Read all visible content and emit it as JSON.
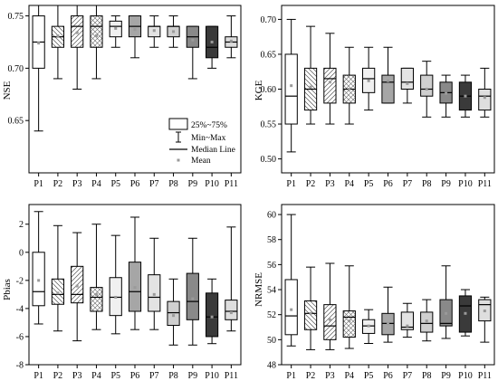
{
  "chart_data": [
    {
      "type": "box",
      "panel": "top-left",
      "ylabel": "NSE",
      "ylim": [
        0.6,
        0.76
      ],
      "yticks": [
        0.65,
        0.7,
        0.75
      ],
      "ytick_labels": [
        "0.65",
        "0.70",
        "0.75"
      ],
      "categories": [
        "P1",
        "P2",
        "P3",
        "P4",
        "P5",
        "P6",
        "P7",
        "P8",
        "P9",
        "P10",
        "P11"
      ],
      "boxes": [
        {
          "min": 0.64,
          "q1": 0.7,
          "median": 0.725,
          "q3": 0.75,
          "max": 0.76,
          "mean": 0.724
        },
        {
          "min": 0.69,
          "q1": 0.72,
          "median": 0.73,
          "q3": 0.74,
          "max": 0.76,
          "mean": 0.731
        },
        {
          "min": 0.68,
          "q1": 0.72,
          "median": 0.74,
          "q3": 0.75,
          "max": 0.76,
          "mean": 0.734
        },
        {
          "min": 0.69,
          "q1": 0.72,
          "median": 0.74,
          "q3": 0.75,
          "max": 0.76,
          "mean": 0.731
        },
        {
          "min": 0.72,
          "q1": 0.73,
          "median": 0.74,
          "q3": 0.745,
          "max": 0.75,
          "mean": 0.738
        },
        {
          "min": 0.71,
          "q1": 0.73,
          "median": 0.74,
          "q3": 0.75,
          "max": 0.75,
          "mean": 0.737
        },
        {
          "min": 0.72,
          "q1": 0.73,
          "median": 0.74,
          "q3": 0.74,
          "max": 0.75,
          "mean": 0.736
        },
        {
          "min": 0.72,
          "q1": 0.73,
          "median": 0.74,
          "q3": 0.74,
          "max": 0.75,
          "mean": 0.735
        },
        {
          "min": 0.69,
          "q1": 0.72,
          "median": 0.73,
          "q3": 0.74,
          "max": 0.74,
          "mean": 0.727
        },
        {
          "min": 0.7,
          "q1": 0.71,
          "median": 0.72,
          "q3": 0.74,
          "max": 0.74,
          "mean": 0.725
        },
        {
          "min": 0.71,
          "q1": 0.72,
          "median": 0.725,
          "q3": 0.73,
          "max": 0.75,
          "mean": 0.726
        }
      ],
      "legend": {
        "placement": "top-right",
        "entries": [
          "25%~75%",
          "Min~Max",
          "Median Line",
          "Mean"
        ]
      }
    },
    {
      "type": "box",
      "panel": "top-right",
      "ylabel": "KGE",
      "ylim": [
        0.48,
        0.72
      ],
      "yticks": [
        0.5,
        0.55,
        0.6,
        0.65,
        0.7
      ],
      "ytick_labels": [
        "0.50",
        "0.55",
        "0.60",
        "0.65",
        "0.70"
      ],
      "categories": [
        "P1",
        "P2",
        "P3",
        "P4",
        "P5",
        "P6",
        "P7",
        "P8",
        "P9",
        "P10",
        "P11"
      ],
      "boxes": [
        {
          "min": 0.51,
          "q1": 0.55,
          "median": 0.59,
          "q3": 0.65,
          "max": 0.7,
          "mean": 0.605
        },
        {
          "min": 0.55,
          "q1": 0.57,
          "median": 0.6,
          "q3": 0.63,
          "max": 0.69,
          "mean": 0.603
        },
        {
          "min": 0.55,
          "q1": 0.58,
          "median": 0.615,
          "q3": 0.63,
          "max": 0.68,
          "mean": 0.61
        },
        {
          "min": 0.55,
          "q1": 0.58,
          "median": 0.6,
          "q3": 0.62,
          "max": 0.66,
          "mean": 0.6
        },
        {
          "min": 0.57,
          "q1": 0.595,
          "median": 0.615,
          "q3": 0.63,
          "max": 0.66,
          "mean": 0.612
        },
        {
          "min": 0.58,
          "q1": 0.58,
          "median": 0.61,
          "q3": 0.62,
          "max": 0.66,
          "mean": 0.612
        },
        {
          "min": 0.58,
          "q1": 0.6,
          "median": 0.61,
          "q3": 0.63,
          "max": 0.63,
          "mean": 0.608
        },
        {
          "min": 0.56,
          "q1": 0.59,
          "median": 0.6,
          "q3": 0.62,
          "max": 0.64,
          "mean": 0.6
        },
        {
          "min": 0.56,
          "q1": 0.58,
          "median": 0.595,
          "q3": 0.61,
          "max": 0.62,
          "mean": 0.594
        },
        {
          "min": 0.56,
          "q1": 0.57,
          "median": 0.59,
          "q3": 0.61,
          "max": 0.62,
          "mean": 0.59
        },
        {
          "min": 0.56,
          "q1": 0.57,
          "median": 0.59,
          "q3": 0.6,
          "max": 0.63,
          "mean": 0.588
        }
      ]
    },
    {
      "type": "box",
      "panel": "bottom-left",
      "ylabel": "Pbias",
      "ylim": [
        -8,
        3.4
      ],
      "yticks": [
        -8,
        -6,
        -4,
        -2,
        0,
        2
      ],
      "ytick_labels": [
        "-8",
        "-6",
        "-4",
        "-2",
        "0",
        "2"
      ],
      "categories": [
        "P1",
        "P2",
        "P3",
        "P4",
        "P5",
        "P6",
        "P7",
        "P8",
        "P9",
        "P10",
        "P11"
      ],
      "boxes": [
        {
          "min": -5.1,
          "q1": -3.8,
          "median": -2.8,
          "q3": 0.0,
          "max": 2.9,
          "mean": -2.0
        },
        {
          "min": -5.6,
          "q1": -3.7,
          "median": -3.0,
          "q3": -1.9,
          "max": 1.9,
          "mean": -2.9
        },
        {
          "min": -6.3,
          "q1": -3.6,
          "median": -3.0,
          "q3": -1.0,
          "max": 1.4,
          "mean": -2.4
        },
        {
          "min": -5.5,
          "q1": -4.2,
          "median": -3.2,
          "q3": -2.5,
          "max": 2.0,
          "mean": -3.0
        },
        {
          "min": -5.8,
          "q1": -4.5,
          "median": -3.2,
          "q3": -1.8,
          "max": 1.2,
          "mean": -3.2
        },
        {
          "min": -5.5,
          "q1": -4.2,
          "median": -2.8,
          "q3": -0.7,
          "max": 2.5,
          "mean": -2.5
        },
        {
          "min": -5.5,
          "q1": -4.2,
          "median": -3.2,
          "q3": -1.6,
          "max": 1.0,
          "mean": -3.0
        },
        {
          "min": -6.6,
          "q1": -5.2,
          "median": -4.3,
          "q3": -3.5,
          "max": -1.9,
          "mean": -4.5
        },
        {
          "min": -6.6,
          "q1": -4.8,
          "median": -3.5,
          "q3": -1.5,
          "max": 1.0,
          "mean": -3.3
        },
        {
          "min": -6.5,
          "q1": -6.0,
          "median": -4.6,
          "q3": -2.9,
          "max": -1.9,
          "mean": -4.6
        },
        {
          "min": -5.6,
          "q1": -4.8,
          "median": -4.2,
          "q3": -3.4,
          "max": 1.8,
          "mean": -4.3
        }
      ]
    },
    {
      "type": "box",
      "panel": "bottom-right",
      "ylabel": "NRMSE",
      "ylim": [
        48,
        60.8
      ],
      "yticks": [
        48,
        50,
        52,
        54,
        56,
        58,
        60
      ],
      "ytick_labels": [
        "48",
        "50",
        "52",
        "54",
        "56",
        "58",
        "60"
      ],
      "categories": [
        "P1",
        "P2",
        "P3",
        "P4",
        "P5",
        "P6",
        "P7",
        "P8",
        "P9",
        "P10",
        "P11"
      ],
      "boxes": [
        {
          "min": 49.5,
          "q1": 50.4,
          "median": 51.9,
          "q3": 54.8,
          "max": 60.0,
          "mean": 52.4
        },
        {
          "min": 49.2,
          "q1": 50.8,
          "median": 52.1,
          "q3": 53.1,
          "max": 55.8,
          "mean": 52.1
        },
        {
          "min": 49.2,
          "q1": 50.0,
          "median": 51.1,
          "q3": 52.8,
          "max": 56.1,
          "mean": 51.6
        },
        {
          "min": 49.3,
          "q1": 50.2,
          "median": 51.8,
          "q3": 52.3,
          "max": 55.9,
          "mean": 51.5
        },
        {
          "min": 49.7,
          "q1": 50.5,
          "median": 51.1,
          "q3": 51.6,
          "max": 52.4,
          "mean": 51.1
        },
        {
          "min": 49.8,
          "q1": 50.4,
          "median": 51.3,
          "q3": 52.1,
          "max": 54.2,
          "mean": 51.3
        },
        {
          "min": 50.2,
          "q1": 50.8,
          "median": 51.0,
          "q3": 52.2,
          "max": 52.9,
          "mean": 51.1
        },
        {
          "min": 49.9,
          "q1": 50.6,
          "median": 51.3,
          "q3": 52.2,
          "max": 53.2,
          "mean": 51.5
        },
        {
          "min": 50.1,
          "q1": 51.1,
          "median": 51.3,
          "q3": 53.2,
          "max": 55.9,
          "mean": 52.1
        },
        {
          "min": 50.3,
          "q1": 50.6,
          "median": 52.7,
          "q3": 53.5,
          "max": 54.0,
          "mean": 52.1
        },
        {
          "min": 49.8,
          "q1": 51.5,
          "median": 52.8,
          "q3": 53.2,
          "max": 53.4,
          "mean": 52.3
        }
      ]
    }
  ],
  "box_styles": [
    {
      "fill": "#ffffff",
      "hatch": "none"
    },
    {
      "fill": "#ffffff",
      "hatch": "diag-back"
    },
    {
      "fill": "#ffffff",
      "hatch": "diag-fwd"
    },
    {
      "fill": "#ffffff",
      "hatch": "cross"
    },
    {
      "fill": "#f0f0f0",
      "hatch": "none"
    },
    {
      "fill": "#a6a6a6",
      "hatch": "none"
    },
    {
      "fill": "#e3e3e3",
      "hatch": "none"
    },
    {
      "fill": "#cfcfcf",
      "hatch": "none"
    },
    {
      "fill": "#898989",
      "hatch": "none"
    },
    {
      "fill": "#3a3a3a",
      "hatch": "none"
    },
    {
      "fill": "#dedede",
      "hatch": "none"
    }
  ],
  "mean_marker_color": "#9a9a9a"
}
